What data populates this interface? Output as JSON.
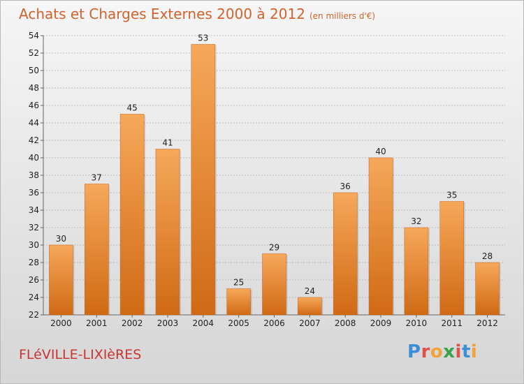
{
  "header": {
    "title": "Achats et Charges Externes 2000 à 2012",
    "subtitle": "(en milliers d'€)"
  },
  "footer": {
    "commune": "FLéVILLE-LIXIèRES",
    "logo_letters": [
      {
        "char": "P",
        "color": "#3a8fd6"
      },
      {
        "char": "r",
        "color": "#e2504a"
      },
      {
        "char": "o",
        "color": "#f2a23a"
      },
      {
        "char": "x",
        "color": "#3aa24a"
      },
      {
        "char": "i",
        "color": "#e2504a"
      },
      {
        "char": "t",
        "color": "#3a8fd6"
      },
      {
        "char": "i",
        "color": "#f2a23a"
      }
    ]
  },
  "chart_data": {
    "type": "bar",
    "title": "Achats et Charges Externes 2000 à 2012",
    "subtitle": "(en milliers d'€)",
    "categories": [
      "2000",
      "2001",
      "2002",
      "2003",
      "2004",
      "2005",
      "2006",
      "2007",
      "2008",
      "2009",
      "2010",
      "2011",
      "2012"
    ],
    "values": [
      30,
      37,
      45,
      41,
      53,
      25,
      29,
      24,
      36,
      40,
      32,
      35,
      28
    ],
    "ylim": [
      22,
      54
    ],
    "yticks": [
      22,
      24,
      26,
      28,
      30,
      32,
      34,
      36,
      38,
      40,
      42,
      44,
      46,
      48,
      50,
      52,
      54
    ],
    "grid": true,
    "legend": "none",
    "colors": {
      "bar_top": "#f6a85a",
      "bar_bottom": "#d06a14",
      "grid": "#bbbbbb",
      "axis": "#666666"
    }
  }
}
